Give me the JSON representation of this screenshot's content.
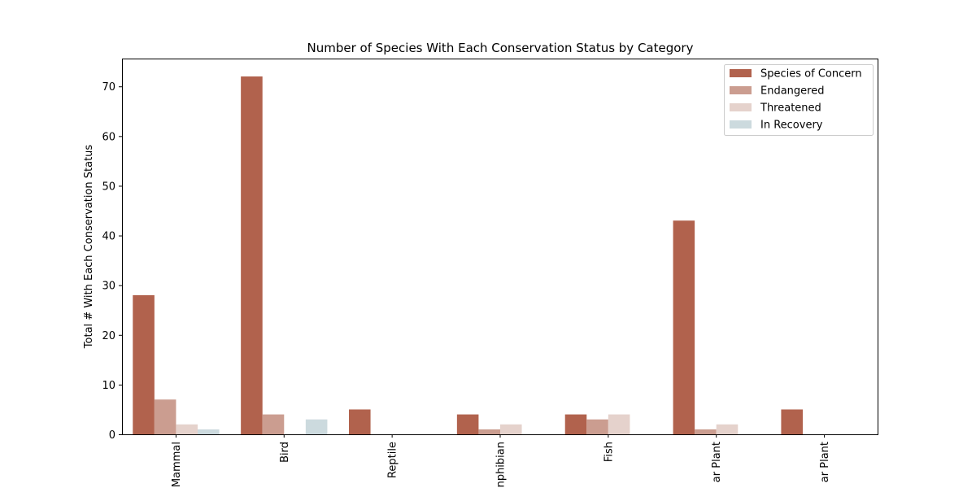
{
  "chart_data": {
    "type": "bar",
    "title": "Number of Species With Each Conservation Status by Category",
    "xlabel": "",
    "ylabel": "Total # With Each Conservation Status",
    "categories": [
      "Mammal",
      "Bird",
      "Reptile",
      "Amphibian",
      "Fish",
      "Vascular Plant",
      "Nonvascular Plant"
    ],
    "category_tick_labels": [
      "Mammal",
      "Bird",
      "Reptile",
      "nphibian",
      "Fish",
      "ar Plant",
      "ar Plant"
    ],
    "ylim": [
      0,
      75.6
    ],
    "yticks": [
      0,
      10,
      20,
      30,
      40,
      50,
      60,
      70
    ],
    "grid": false,
    "legend_position": "top-right",
    "series": [
      {
        "name": "Species of Concern",
        "color": "#b1624d",
        "values": [
          28,
          72,
          5,
          4,
          4,
          43,
          5
        ]
      },
      {
        "name": "Endangered",
        "color": "#cb9d90",
        "values": [
          7,
          4,
          0,
          1,
          3,
          1,
          0
        ]
      },
      {
        "name": "Threatened",
        "color": "#e5d2cc",
        "values": [
          2,
          0,
          0,
          2,
          4,
          2,
          0
        ]
      },
      {
        "name": "In Recovery",
        "color": "#ccdade",
        "values": [
          1,
          3,
          0,
          0,
          0,
          0,
          0
        ]
      }
    ]
  }
}
